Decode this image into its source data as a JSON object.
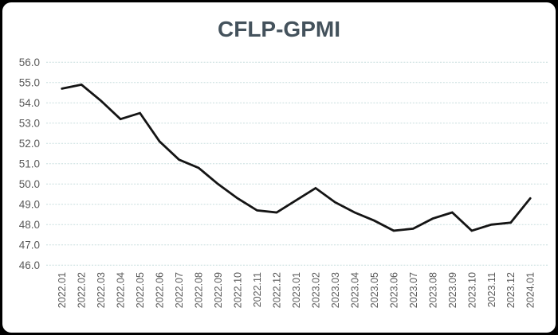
{
  "window": {
    "background": "#000000",
    "panel_background": "#ffffff"
  },
  "chart_data": {
    "type": "line",
    "title": "CFLP-GPMI",
    "title_color": "#44525c",
    "categories": [
      "2022.01",
      "2022.02",
      "2022.03",
      "2022.04",
      "2022.05",
      "2022.06",
      "2022.07",
      "2022.08",
      "2022.09",
      "2022.10",
      "2022.11",
      "2022.12",
      "2023.01",
      "2023.02",
      "2023.03",
      "2023.04",
      "2023.05",
      "2023.06",
      "2023.07",
      "2023.08",
      "2023.09",
      "2023.10",
      "2023.11",
      "2023.12",
      "2024.01"
    ],
    "series": [
      {
        "name": "CFLP-GPMI",
        "color": "#141414",
        "values": [
          54.7,
          54.9,
          54.1,
          53.2,
          53.5,
          52.1,
          51.2,
          50.8,
          50.0,
          49.3,
          48.7,
          48.6,
          49.2,
          49.8,
          49.1,
          48.6,
          48.2,
          47.7,
          47.8,
          48.3,
          48.6,
          47.7,
          48.0,
          48.1,
          49.3
        ]
      }
    ],
    "ylim": [
      46.0,
      56.0
    ],
    "ytick_step": 1.0,
    "ytick_labels": [
      "46.0",
      "47.0",
      "48.0",
      "49.0",
      "50.0",
      "51.0",
      "52.0",
      "53.0",
      "54.0",
      "55.0",
      "56.0"
    ],
    "xlabel": "",
    "ylabel": "",
    "x_label_rotation_deg": 90,
    "grid": "horizontal",
    "gridline_style": "dashed",
    "gridline_color": "#c8dede",
    "axis_label_color": "#595959",
    "legend": "none"
  }
}
